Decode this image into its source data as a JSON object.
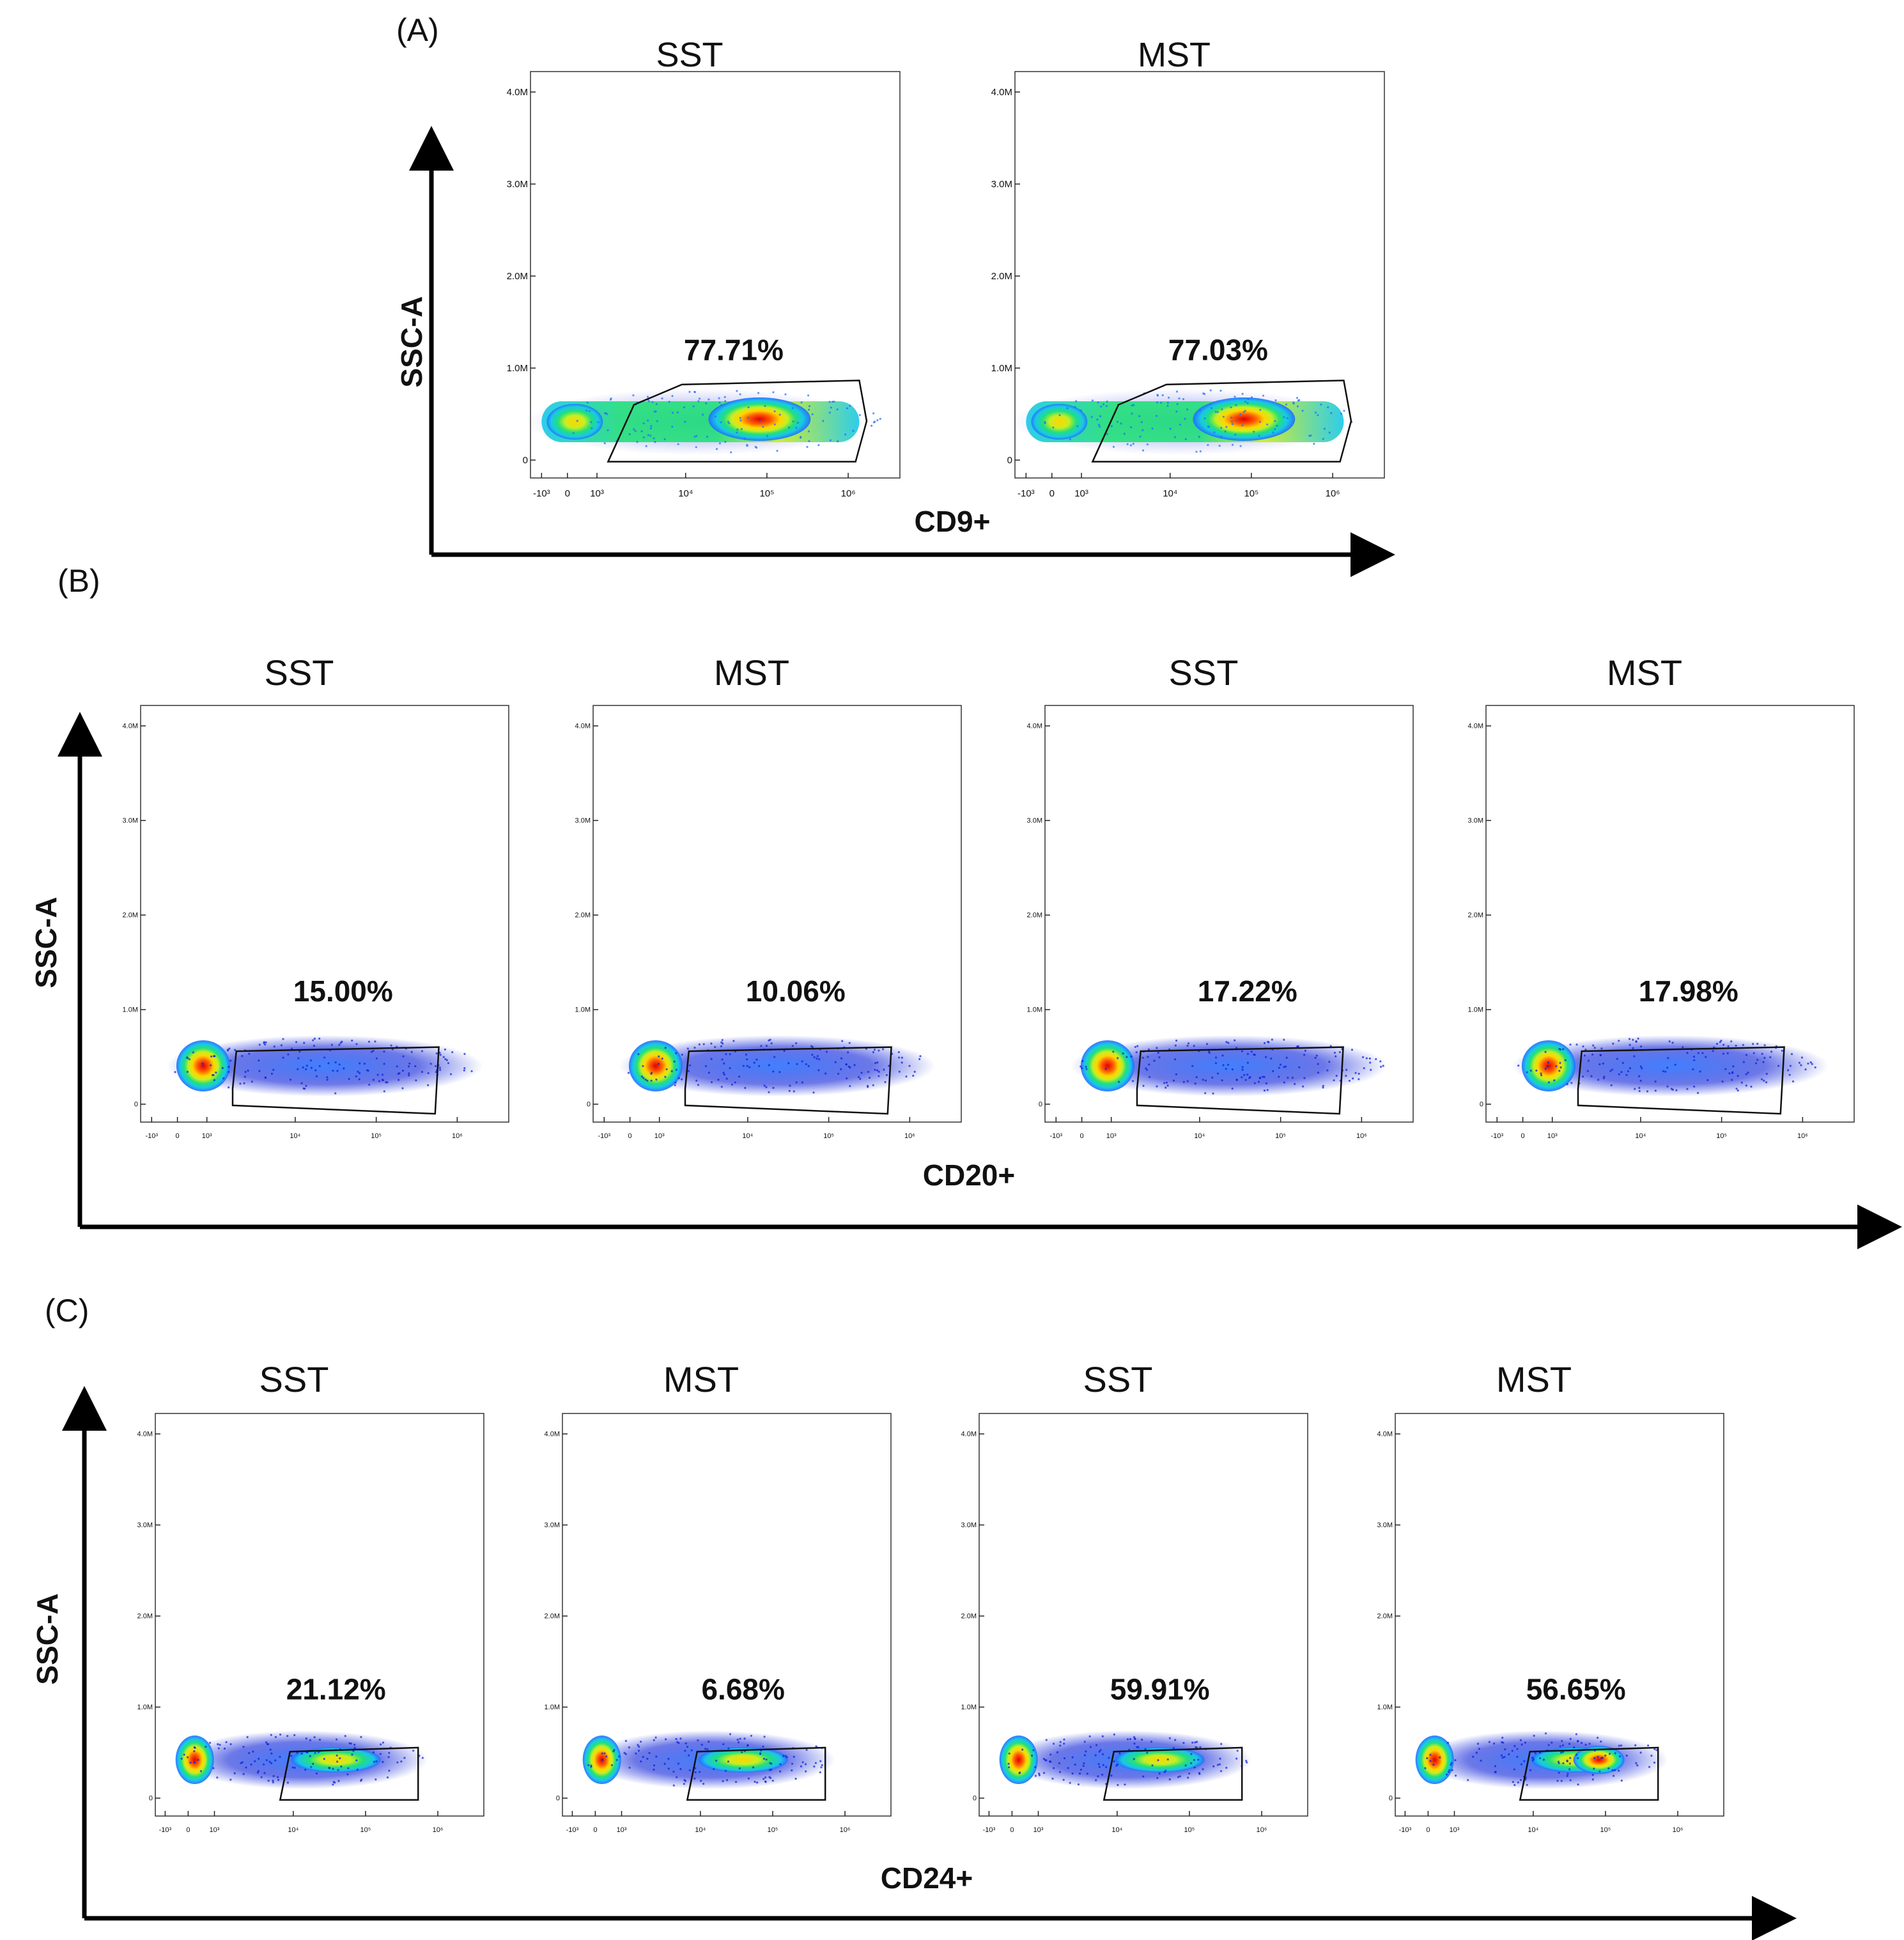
{
  "figure": {
    "colors": {
      "axis": "#000000",
      "gate": "#111111",
      "density": [
        "#0a1ed8",
        "#1f6bff",
        "#18c8e8",
        "#22e07a",
        "#c8ee22",
        "#ffd500",
        "#ff5a00",
        "#e00000"
      ]
    },
    "panels": [
      {
        "id": "A",
        "label": "(A)",
        "y_label": "SSC-A",
        "x_label": "CD9+",
        "y_ticks": [
          "4.0M",
          "3.0M",
          "2.0M",
          "1.0M",
          "0"
        ],
        "x_ticks": [
          "-10³",
          "0",
          "10³",
          "10⁴",
          "10⁵",
          "10⁶"
        ],
        "plots": [
          {
            "title": "SST",
            "gate_percent": "77.71%",
            "population": "wide",
            "peak": "right"
          },
          {
            "title": "MST",
            "gate_percent": "77.03%",
            "population": "wide",
            "peak": "right"
          }
        ]
      },
      {
        "id": "B",
        "label": "(B)",
        "y_label": "SSC-A",
        "x_label": "CD20+",
        "y_ticks": [
          "4.0M",
          "3.0M",
          "2.0M",
          "1.0M",
          "0"
        ],
        "x_ticks": [
          "-10³",
          "0",
          "10³",
          "10⁴",
          "10⁵",
          "10⁶"
        ],
        "plots": [
          {
            "title": "SST",
            "gate_percent": "15.00%",
            "population": "left-cluster",
            "peak": "left"
          },
          {
            "title": "MST",
            "gate_percent": "10.06%",
            "population": "left-cluster",
            "peak": "left"
          },
          {
            "title": "SST",
            "gate_percent": "17.22%",
            "population": "left-cluster",
            "peak": "left"
          },
          {
            "title": "MST",
            "gate_percent": "17.98%",
            "population": "left-cluster",
            "peak": "left"
          }
        ]
      },
      {
        "id": "C",
        "label": "(C)",
        "y_label": "SSC-A",
        "x_label": "CD24+",
        "y_ticks": [
          "4.0M",
          "3.0M",
          "2.0M",
          "1.0M",
          "0"
        ],
        "x_ticks": [
          "-10³",
          "0",
          "10³",
          "10⁴",
          "10⁵",
          "10⁶"
        ],
        "plots": [
          {
            "title": "SST",
            "gate_percent": "21.12%",
            "population": "two-cluster",
            "peak": "left"
          },
          {
            "title": "MST",
            "gate_percent": "6.68%",
            "population": "two-cluster",
            "peak": "left"
          },
          {
            "title": "SST",
            "gate_percent": "59.91%",
            "population": "two-cluster",
            "peak": "left"
          },
          {
            "title": "MST",
            "gate_percent": "56.65%",
            "population": "two-cluster",
            "peak": "right"
          }
        ]
      }
    ]
  },
  "chart_data": [
    {
      "type": "scatter",
      "panel": "A",
      "title": "SST",
      "xlabel": "CD9+",
      "ylabel": "SSC-A",
      "ylim": [
        0,
        4000000
      ],
      "gate_percent": 77.71
    },
    {
      "type": "scatter",
      "panel": "A",
      "title": "MST",
      "xlabel": "CD9+",
      "ylabel": "SSC-A",
      "ylim": [
        0,
        4000000
      ],
      "gate_percent": 77.03
    },
    {
      "type": "scatter",
      "panel": "B",
      "title": "SST",
      "xlabel": "CD20+",
      "ylabel": "SSC-A",
      "ylim": [
        0,
        4000000
      ],
      "gate_percent": 15.0
    },
    {
      "type": "scatter",
      "panel": "B",
      "title": "MST",
      "xlabel": "CD20+",
      "ylabel": "SSC-A",
      "ylim": [
        0,
        4000000
      ],
      "gate_percent": 10.06
    },
    {
      "type": "scatter",
      "panel": "B",
      "title": "SST",
      "xlabel": "CD20+",
      "ylabel": "SSC-A",
      "ylim": [
        0,
        4000000
      ],
      "gate_percent": 17.22
    },
    {
      "type": "scatter",
      "panel": "B",
      "title": "MST",
      "xlabel": "CD20+",
      "ylabel": "SSC-A",
      "ylim": [
        0,
        4000000
      ],
      "gate_percent": 17.98
    },
    {
      "type": "scatter",
      "panel": "C",
      "title": "SST",
      "xlabel": "CD24+",
      "ylabel": "SSC-A",
      "ylim": [
        0,
        4000000
      ],
      "gate_percent": 21.12
    },
    {
      "type": "scatter",
      "panel": "C",
      "title": "MST",
      "xlabel": "CD24+",
      "ylabel": "SSC-A",
      "ylim": [
        0,
        4000000
      ],
      "gate_percent": 6.68
    },
    {
      "type": "scatter",
      "panel": "C",
      "title": "SST",
      "xlabel": "CD24+",
      "ylabel": "SSC-A",
      "ylim": [
        0,
        4000000
      ],
      "gate_percent": 59.91
    },
    {
      "type": "scatter",
      "panel": "C",
      "title": "MST",
      "xlabel": "CD24+",
      "ylabel": "SSC-A",
      "ylim": [
        0,
        4000000
      ],
      "gate_percent": 56.65
    }
  ]
}
